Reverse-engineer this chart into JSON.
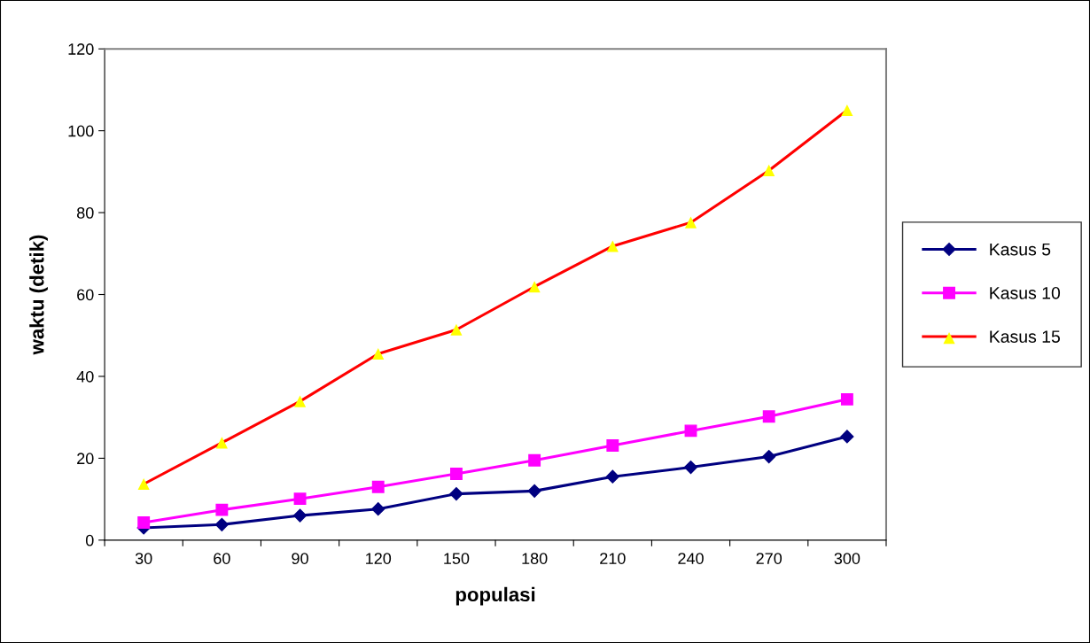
{
  "chart_data": {
    "type": "line",
    "xlabel": "populasi",
    "ylabel": "waktu (detik)",
    "categories": [
      "30",
      "60",
      "90",
      "120",
      "150",
      "180",
      "210",
      "240",
      "270",
      "300"
    ],
    "ylim": [
      0,
      120
    ],
    "yticks": [
      0,
      20,
      40,
      60,
      80,
      100,
      120
    ],
    "grid": false,
    "legend": "right",
    "line_style": "solid",
    "series": [
      {
        "name": "Kasus 5",
        "color": "#000080",
        "marker": "diamond",
        "values": [
          3.0,
          3.8,
          6.0,
          7.6,
          11.3,
          12.0,
          15.5,
          17.8,
          20.4,
          25.3
        ]
      },
      {
        "name": "Kasus 10",
        "color": "#ff00ff",
        "marker": "square",
        "values": [
          4.3,
          7.4,
          10.1,
          13.0,
          16.2,
          19.5,
          23.1,
          26.7,
          30.2,
          34.4
        ]
      },
      {
        "name": "Kasus 15",
        "color": "#ff0000",
        "marker": "triangle",
        "colors": [
          "#ffff00",
          "#ffff00",
          "#ffff00",
          "#ffff00",
          "#ffff00",
          "#ffff00",
          "#ffff00",
          "#ffff00",
          "#ffff00",
          "#ffff00"
        ],
        "values": [
          13.7,
          23.8,
          33.9,
          45.5,
          51.4,
          61.9,
          71.8,
          77.6,
          90.3,
          105.0
        ]
      }
    ]
  }
}
